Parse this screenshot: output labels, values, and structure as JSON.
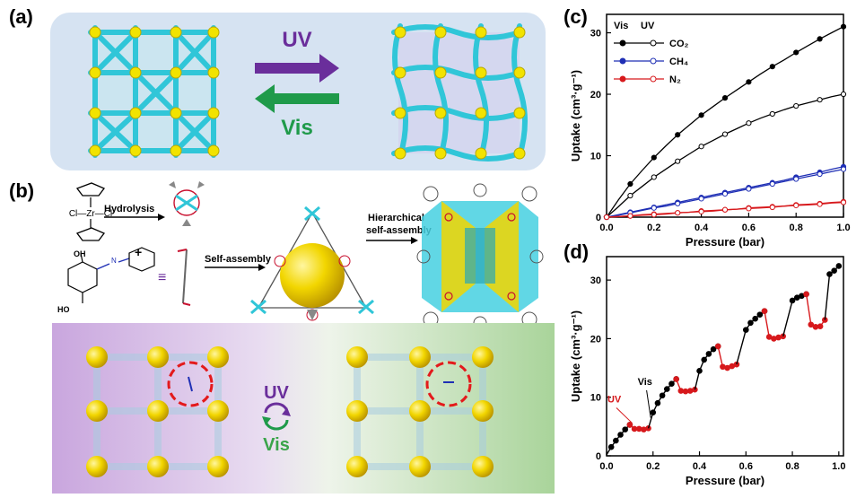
{
  "panel_a": {
    "label": "(a)",
    "uv_text": "UV",
    "vis_text": "Vis",
    "colors": {
      "bg": "#d6e3f2",
      "uv": "#6a2e9b",
      "vis": "#1f9a4a",
      "frame": "#30c6d8",
      "node": "#f2e300"
    }
  },
  "panel_b": {
    "label": "(b)",
    "zr_cp": "Cl—Zr—Cl",
    "hydrolysis": "Hydrolysis",
    "plus": "+",
    "equiv": "≡",
    "ho_label": "HO",
    "oh_top": "OH",
    "n_label": "N",
    "self_assembly": "Self-assembly",
    "hier_line1": "Hierarchical",
    "hier_line2": "self-assembly",
    "uv_text": "UV",
    "vis_text": "Vis",
    "colors": {
      "left": "#c9a6de",
      "right": "#bfe0b0",
      "sphere": "#f2d600",
      "ring": "#e31a1c",
      "cube": "#30c6d8"
    }
  },
  "chart_data": [
    {
      "panel": "(c)",
      "type": "line",
      "title": "",
      "xlabel": "Pressure (bar)",
      "ylabel": "Uptake (cm³·g⁻¹)",
      "xlim": [
        0.0,
        1.0
      ],
      "ylim": [
        0,
        33
      ],
      "xticks": [
        "0.0",
        "0.2",
        "0.4",
        "0.6",
        "0.8",
        "1.0"
      ],
      "yticks": [
        "0",
        "10",
        "20",
        "30"
      ],
      "legend_header": [
        "Vis",
        "UV"
      ],
      "legend": [
        "CO₂",
        "CH₄",
        "N₂"
      ],
      "x": [
        0.0,
        0.05,
        0.1,
        0.15,
        0.2,
        0.25,
        0.3,
        0.35,
        0.4,
        0.45,
        0.5,
        0.55,
        0.6,
        0.65,
        0.7,
        0.75,
        0.8,
        0.85,
        0.9,
        0.95,
        1.0
      ],
      "series": [
        {
          "name": "CO₂ Vis",
          "color": "#000000",
          "filled": true,
          "values": [
            0.0,
            2.8,
            5.4,
            7.6,
            9.7,
            11.6,
            13.4,
            15.0,
            16.6,
            18.0,
            19.4,
            20.7,
            22.0,
            23.3,
            24.5,
            25.6,
            26.8,
            27.9,
            29.0,
            30.0,
            31.0
          ]
        },
        {
          "name": "CO₂ UV",
          "color": "#000000",
          "filled": false,
          "values": [
            0.0,
            1.7,
            3.5,
            5.0,
            6.5,
            7.8,
            9.1,
            10.3,
            11.5,
            12.5,
            13.5,
            14.4,
            15.3,
            16.1,
            16.8,
            17.5,
            18.1,
            18.6,
            19.1,
            19.6,
            20.0
          ]
        },
        {
          "name": "CH₄ Vis",
          "color": "#1f2fb5",
          "filled": true,
          "values": [
            0.0,
            0.4,
            0.8,
            1.2,
            1.6,
            2.0,
            2.4,
            2.8,
            3.2,
            3.6,
            4.0,
            4.4,
            4.8,
            5.2,
            5.6,
            6.0,
            6.5,
            6.9,
            7.3,
            7.8,
            8.2
          ]
        },
        {
          "name": "CH₄ UV",
          "color": "#1f2fb5",
          "filled": false,
          "values": [
            0.0,
            0.3,
            0.7,
            1.1,
            1.5,
            1.8,
            2.2,
            2.6,
            3.0,
            3.4,
            3.8,
            4.2,
            4.6,
            5.0,
            5.4,
            5.8,
            6.2,
            6.6,
            7.0,
            7.4,
            7.8
          ]
        },
        {
          "name": "N₂ Vis",
          "color": "#d7191c",
          "filled": true,
          "values": [
            0.0,
            0.1,
            0.2,
            0.4,
            0.5,
            0.6,
            0.7,
            0.8,
            1.0,
            1.1,
            1.2,
            1.3,
            1.5,
            1.6,
            1.7,
            1.8,
            2.0,
            2.1,
            2.2,
            2.4,
            2.5
          ]
        },
        {
          "name": "N₂ UV",
          "color": "#d7191c",
          "filled": false,
          "values": [
            0.0,
            0.1,
            0.2,
            0.3,
            0.4,
            0.5,
            0.7,
            0.8,
            0.9,
            1.0,
            1.2,
            1.3,
            1.4,
            1.5,
            1.6,
            1.8,
            1.9,
            2.0,
            2.1,
            2.3,
            2.4
          ]
        }
      ]
    },
    {
      "panel": "(d)",
      "type": "line",
      "title": "",
      "xlabel": "Pressure (bar)",
      "ylabel": "Uptake (cm³·g⁻¹)",
      "xlim": [
        0.0,
        1.02
      ],
      "ylim": [
        0,
        34
      ],
      "xticks": [
        "0.0",
        "0.2",
        "0.4",
        "0.6",
        "0.8",
        "1.0"
      ],
      "yticks": [
        "0",
        "10",
        "20",
        "30"
      ],
      "annotations": [
        {
          "text": "UV",
          "color": "#d7191c",
          "x": 0.05,
          "y": 8.5
        },
        {
          "text": "Vis",
          "color": "#000000",
          "x": 0.18,
          "y": 11.5
        }
      ],
      "segments": [
        {
          "color": "#000000",
          "points": [
            [
              0.0,
              0.2
            ],
            [
              0.02,
              1.5
            ],
            [
              0.04,
              2.6
            ],
            [
              0.06,
              3.6
            ],
            [
              0.08,
              4.5
            ],
            [
              0.1,
              5.3
            ]
          ]
        },
        {
          "color": "#d7191c",
          "points": [
            [
              0.1,
              5.3
            ],
            [
              0.12,
              4.6
            ],
            [
              0.14,
              4.6
            ],
            [
              0.16,
              4.5
            ],
            [
              0.18,
              4.7
            ]
          ]
        },
        {
          "color": "#000000",
          "points": [
            [
              0.18,
              4.7
            ],
            [
              0.2,
              7.4
            ],
            [
              0.22,
              9.0
            ],
            [
              0.24,
              10.3
            ],
            [
              0.26,
              11.4
            ],
            [
              0.28,
              12.3
            ],
            [
              0.3,
              13.1
            ]
          ]
        },
        {
          "color": "#d7191c",
          "points": [
            [
              0.3,
              13.1
            ],
            [
              0.32,
              11.1
            ],
            [
              0.34,
              11.0
            ],
            [
              0.36,
              11.1
            ],
            [
              0.38,
              11.3
            ]
          ]
        },
        {
          "color": "#000000",
          "points": [
            [
              0.38,
              11.3
            ],
            [
              0.4,
              14.5
            ],
            [
              0.42,
              16.4
            ],
            [
              0.44,
              17.4
            ],
            [
              0.46,
              18.2
            ],
            [
              0.48,
              18.7
            ]
          ]
        },
        {
          "color": "#d7191c",
          "points": [
            [
              0.48,
              18.7
            ],
            [
              0.5,
              15.2
            ],
            [
              0.52,
              15.0
            ],
            [
              0.54,
              15.3
            ],
            [
              0.56,
              15.6
            ]
          ]
        },
        {
          "color": "#000000",
          "points": [
            [
              0.56,
              15.6
            ],
            [
              0.6,
              21.5
            ],
            [
              0.62,
              22.7
            ],
            [
              0.64,
              23.4
            ],
            [
              0.66,
              24.1
            ],
            [
              0.68,
              24.7
            ]
          ]
        },
        {
          "color": "#d7191c",
          "points": [
            [
              0.68,
              24.7
            ],
            [
              0.7,
              20.3
            ],
            [
              0.72,
              20.0
            ],
            [
              0.74,
              20.2
            ],
            [
              0.76,
              20.4
            ]
          ]
        },
        {
          "color": "#000000",
          "points": [
            [
              0.76,
              20.4
            ],
            [
              0.8,
              26.5
            ],
            [
              0.82,
              27.0
            ],
            [
              0.84,
              27.3
            ],
            [
              0.86,
              27.6
            ]
          ]
        },
        {
          "color": "#d7191c",
          "points": [
            [
              0.86,
              27.6
            ],
            [
              0.88,
              22.4
            ],
            [
              0.9,
              22.0
            ],
            [
              0.92,
              22.1
            ],
            [
              0.94,
              23.2
            ]
          ]
        },
        {
          "color": "#000000",
          "points": [
            [
              0.94,
              23.2
            ],
            [
              0.96,
              31.0
            ],
            [
              0.98,
              31.6
            ],
            [
              1.0,
              32.4
            ]
          ]
        }
      ]
    }
  ]
}
